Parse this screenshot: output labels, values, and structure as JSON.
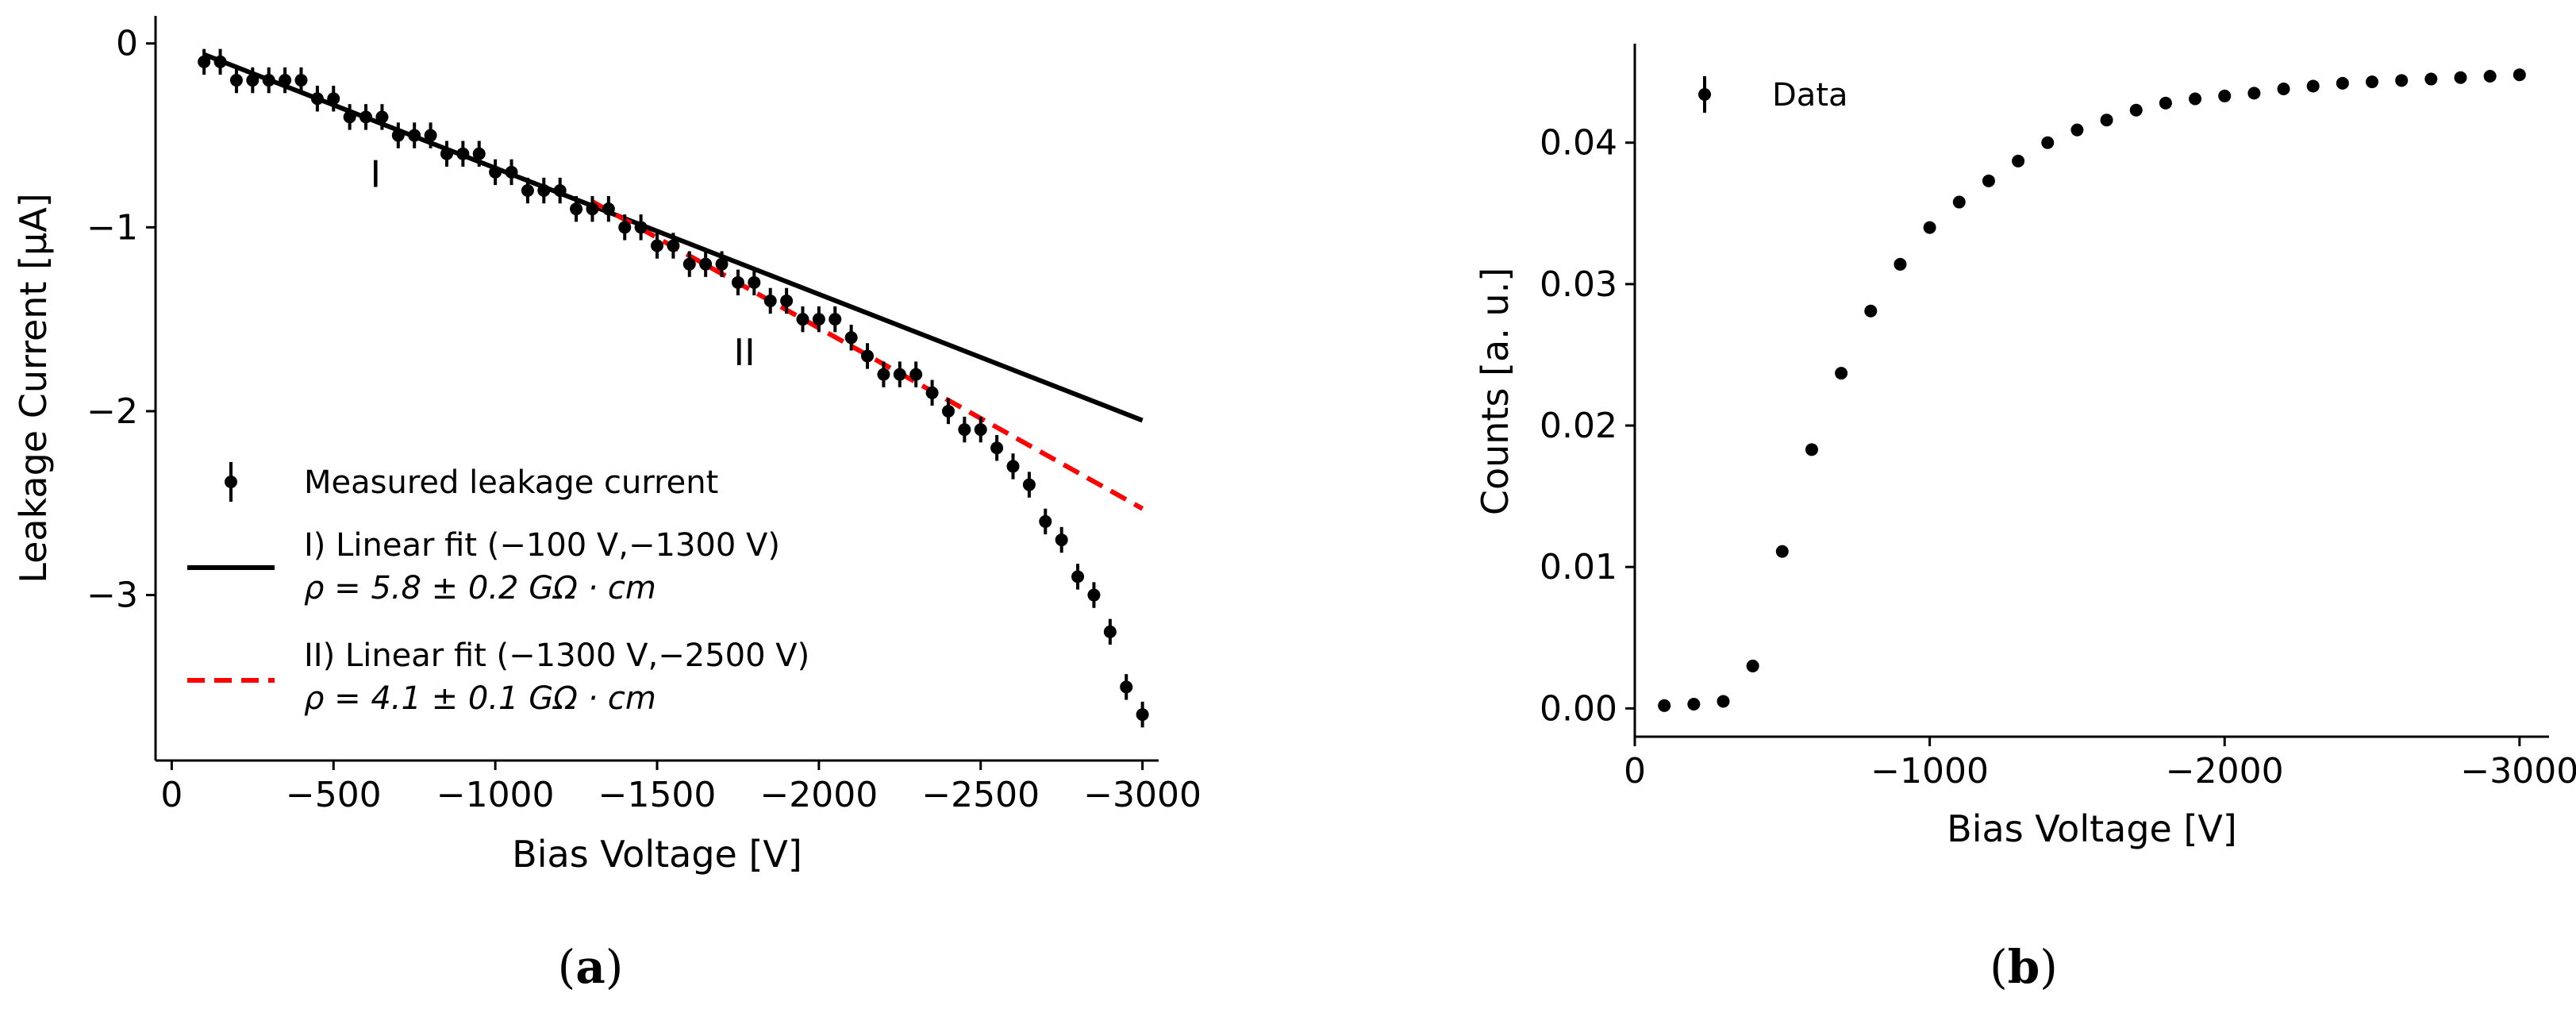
{
  "chart_data": [
    {
      "type": "scatter",
      "panel_label": {
        "open": "(",
        "letter": "a",
        "close": ")"
      },
      "xlabel": "Bias Voltage [V]",
      "ylabel": "Leakage Current [μA]",
      "xlim": [
        50,
        -3050
      ],
      "ylim": [
        -3.9,
        0.15
      ],
      "xticks": [
        0,
        -500,
        -1000,
        -1500,
        -2000,
        -2500,
        -3000
      ],
      "xtick_labels": [
        "0",
        "−500",
        "−1000",
        "−1500",
        "−2000",
        "−2500",
        "−3000"
      ],
      "yticks": [
        0,
        -1,
        -2,
        -3
      ],
      "ytick_labels": [
        "0",
        "−1",
        "−2",
        "−3"
      ],
      "grid": false,
      "legend_position": "lower-left",
      "series": [
        {
          "name": "Measured leakage current",
          "style": "errorbar-points",
          "color": "#000000",
          "x": [
            -100,
            -150,
            -200,
            -250,
            -300,
            -350,
            -400,
            -450,
            -500,
            -550,
            -600,
            -650,
            -700,
            -750,
            -800,
            -850,
            -900,
            -950,
            -1000,
            -1050,
            -1100,
            -1150,
            -1200,
            -1250,
            -1300,
            -1350,
            -1400,
            -1450,
            -1500,
            -1550,
            -1600,
            -1650,
            -1700,
            -1750,
            -1800,
            -1850,
            -1900,
            -1950,
            -2000,
            -2050,
            -2100,
            -2150,
            -2200,
            -2250,
            -2300,
            -2350,
            -2400,
            -2450,
            -2500,
            -2550,
            -2600,
            -2650,
            -2700,
            -2750,
            -2800,
            -2850,
            -2900,
            -2950,
            -3000
          ],
          "y": [
            -0.1,
            -0.1,
            -0.2,
            -0.2,
            -0.2,
            -0.2,
            -0.2,
            -0.3,
            -0.3,
            -0.4,
            -0.4,
            -0.4,
            -0.5,
            -0.5,
            -0.5,
            -0.6,
            -0.6,
            -0.6,
            -0.7,
            -0.7,
            -0.8,
            -0.8,
            -0.8,
            -0.9,
            -0.9,
            -0.9,
            -1.0,
            -1.0,
            -1.1,
            -1.1,
            -1.2,
            -1.2,
            -1.2,
            -1.3,
            -1.3,
            -1.4,
            -1.4,
            -1.5,
            -1.5,
            -1.5,
            -1.6,
            -1.7,
            -1.8,
            -1.8,
            -1.8,
            -1.9,
            -2.0,
            -2.1,
            -2.1,
            -2.2,
            -2.3,
            -2.4,
            -2.6,
            -2.7,
            -2.9,
            -3.0,
            -3.2,
            -3.5,
            -3.65
          ],
          "yerr": 0.07
        },
        {
          "name": "I) Linear fit (−100 V,−1300 V)",
          "legend_line2": "ρ = 5.8 ± 0.2 GΩ · cm",
          "style": "solid-line",
          "color": "#000000",
          "x": [
            -100,
            -3000
          ],
          "y": [
            -0.06,
            -2.05
          ]
        },
        {
          "name": "II) Linear fit (−1300 V,−2500 V)",
          "legend_line2": "ρ = 4.1 ± 0.1 GΩ · cm",
          "style": "dashed-line",
          "color": "#ff0000",
          "x": [
            -1300,
            -3000
          ],
          "y": [
            -0.86,
            -2.53
          ]
        }
      ],
      "annotations": [
        {
          "text": "I",
          "x": -630,
          "y": -0.78
        },
        {
          "text": "II",
          "x": -1770,
          "y": -1.75
        }
      ]
    },
    {
      "type": "scatter",
      "panel_label": {
        "open": "(",
        "letter": "b",
        "close": ")"
      },
      "xlabel": "Bias Voltage [V]",
      "ylabel": "Counts [a. u.]",
      "xlim": [
        0,
        -3100
      ],
      "ylim": [
        -0.002,
        0.047
      ],
      "xticks": [
        0,
        -1000,
        -2000,
        -3000
      ],
      "xtick_labels": [
        "0",
        "−1000",
        "−2000",
        "−3000"
      ],
      "yticks": [
        0.0,
        0.01,
        0.02,
        0.03,
        0.04
      ],
      "ytick_labels": [
        "0.00",
        "0.01",
        "0.02",
        "0.03",
        "0.04"
      ],
      "grid": false,
      "legend_position": "top-left",
      "series": [
        {
          "name": "Data",
          "style": "points",
          "color": "#000000",
          "x": [
            -100,
            -200,
            -300,
            -400,
            -500,
            -600,
            -700,
            -800,
            -900,
            -1000,
            -1100,
            -1200,
            -1300,
            -1400,
            -1500,
            -1600,
            -1700,
            -1800,
            -1900,
            -2000,
            -2100,
            -2200,
            -2300,
            -2400,
            -2500,
            -2600,
            -2700,
            -2800,
            -2900,
            -3000
          ],
          "y": [
            0.0002,
            0.0003,
            0.0005,
            0.003,
            0.0111,
            0.0183,
            0.0237,
            0.0281,
            0.0314,
            0.034,
            0.0358,
            0.0373,
            0.0387,
            0.04,
            0.0409,
            0.0416,
            0.0423,
            0.0428,
            0.0431,
            0.0433,
            0.0435,
            0.0438,
            0.044,
            0.0442,
            0.0443,
            0.0444,
            0.0445,
            0.0446,
            0.0447,
            0.0448
          ]
        }
      ]
    }
  ]
}
